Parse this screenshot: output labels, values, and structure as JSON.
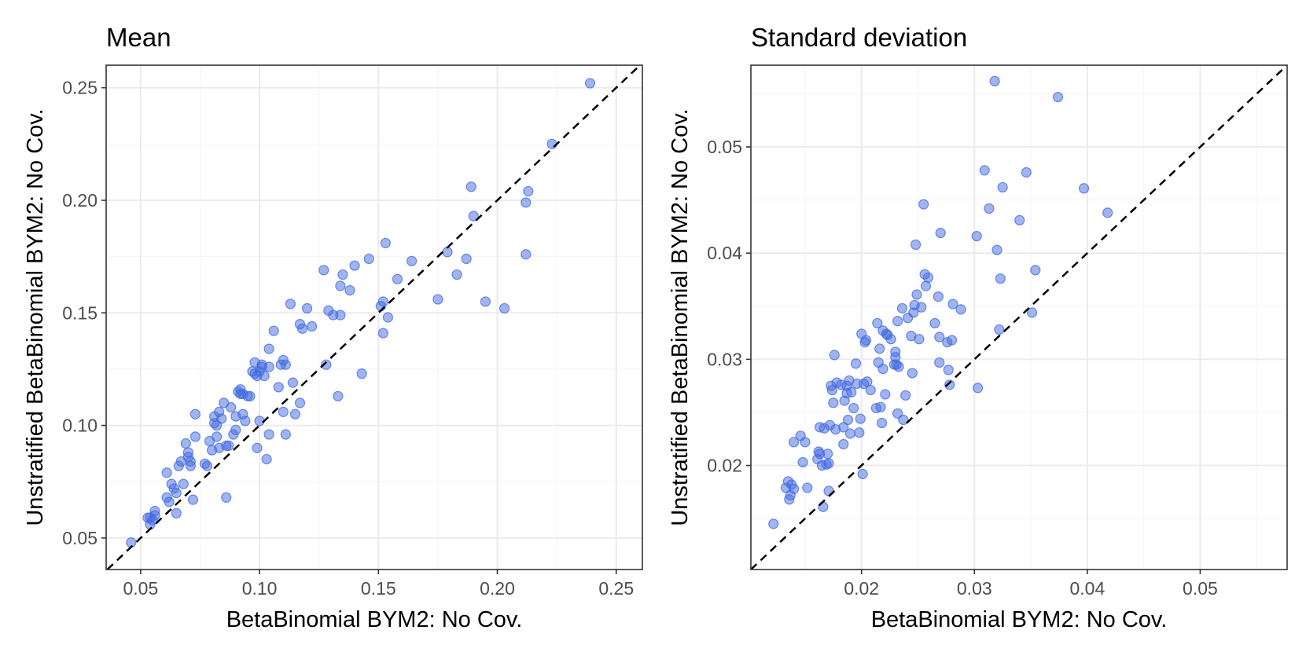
{
  "chart_data": [
    {
      "type": "scatter",
      "title": "Mean",
      "xlabel": "BetaBinomial BYM2: No Cov.",
      "ylabel": "Unstratified BetaBinomial BYM2: No Cov.",
      "xlim": [
        0.0355,
        0.261
      ],
      "ylim": [
        0.036,
        0.26
      ],
      "xticks": [
        0.05,
        0.1,
        0.15,
        0.2,
        0.25
      ],
      "yticks": [
        0.05,
        0.1,
        0.15,
        0.2,
        0.25
      ],
      "xtick_labels": [
        "0.05",
        "0.10",
        "0.15",
        "0.20",
        "0.25"
      ],
      "ytick_labels": [
        "0.05",
        "0.10",
        "0.15",
        "0.20",
        "0.25"
      ],
      "reference_line": "y = x",
      "points": [
        [
          0.046,
          0.048
        ],
        [
          0.053,
          0.059
        ],
        [
          0.054,
          0.056
        ],
        [
          0.055,
          0.058
        ],
        [
          0.056,
          0.06
        ],
        [
          0.056,
          0.062
        ],
        [
          0.054,
          0.059
        ],
        [
          0.061,
          0.068
        ],
        [
          0.062,
          0.066
        ],
        [
          0.061,
          0.079
        ],
        [
          0.063,
          0.074
        ],
        [
          0.064,
          0.072
        ],
        [
          0.065,
          0.07
        ],
        [
          0.065,
          0.061
        ],
        [
          0.066,
          0.082
        ],
        [
          0.067,
          0.084
        ],
        [
          0.068,
          0.074
        ],
        [
          0.069,
          0.092
        ],
        [
          0.07,
          0.088
        ],
        [
          0.07,
          0.086
        ],
        [
          0.071,
          0.082
        ],
        [
          0.071,
          0.084
        ],
        [
          0.072,
          0.067
        ],
        [
          0.073,
          0.095
        ],
        [
          0.073,
          0.105
        ],
        [
          0.077,
          0.083
        ],
        [
          0.078,
          0.082
        ],
        [
          0.079,
          0.093
        ],
        [
          0.08,
          0.089
        ],
        [
          0.081,
          0.101
        ],
        [
          0.081,
          0.104
        ],
        [
          0.082,
          0.095
        ],
        [
          0.082,
          0.1
        ],
        [
          0.083,
          0.09
        ],
        [
          0.083,
          0.106
        ],
        [
          0.084,
          0.103
        ],
        [
          0.085,
          0.11
        ],
        [
          0.086,
          0.068
        ],
        [
          0.086,
          0.091
        ],
        [
          0.087,
          0.091
        ],
        [
          0.088,
          0.108
        ],
        [
          0.089,
          0.096
        ],
        [
          0.09,
          0.098
        ],
        [
          0.09,
          0.104
        ],
        [
          0.091,
          0.115
        ],
        [
          0.092,
          0.116
        ],
        [
          0.092,
          0.114
        ],
        [
          0.093,
          0.105
        ],
        [
          0.093,
          0.114
        ],
        [
          0.094,
          0.102
        ],
        [
          0.095,
          0.113
        ],
        [
          0.096,
          0.113
        ],
        [
          0.097,
          0.124
        ],
        [
          0.098,
          0.128
        ],
        [
          0.098,
          0.123
        ],
        [
          0.099,
          0.122
        ],
        [
          0.099,
          0.09
        ],
        [
          0.1,
          0.102
        ],
        [
          0.1,
          0.124
        ],
        [
          0.101,
          0.126
        ],
        [
          0.101,
          0.127
        ],
        [
          0.102,
          0.122
        ],
        [
          0.103,
          0.085
        ],
        [
          0.104,
          0.096
        ],
        [
          0.104,
          0.126
        ],
        [
          0.104,
          0.134
        ],
        [
          0.106,
          0.142
        ],
        [
          0.108,
          0.117
        ],
        [
          0.109,
          0.127
        ],
        [
          0.11,
          0.106
        ],
        [
          0.11,
          0.129
        ],
        [
          0.111,
          0.096
        ],
        [
          0.111,
          0.127
        ],
        [
          0.113,
          0.154
        ],
        [
          0.114,
          0.119
        ],
        [
          0.115,
          0.105
        ],
        [
          0.117,
          0.145
        ],
        [
          0.117,
          0.11
        ],
        [
          0.118,
          0.143
        ],
        [
          0.12,
          0.152
        ],
        [
          0.122,
          0.144
        ],
        [
          0.127,
          0.169
        ],
        [
          0.128,
          0.127
        ],
        [
          0.129,
          0.151
        ],
        [
          0.131,
          0.149
        ],
        [
          0.133,
          0.113
        ],
        [
          0.134,
          0.149
        ],
        [
          0.134,
          0.162
        ],
        [
          0.135,
          0.167
        ],
        [
          0.138,
          0.16
        ],
        [
          0.14,
          0.171
        ],
        [
          0.143,
          0.123
        ],
        [
          0.146,
          0.174
        ],
        [
          0.151,
          0.153
        ],
        [
          0.152,
          0.141
        ],
        [
          0.152,
          0.155
        ],
        [
          0.153,
          0.181
        ],
        [
          0.154,
          0.148
        ],
        [
          0.158,
          0.165
        ],
        [
          0.164,
          0.173
        ],
        [
          0.175,
          0.156
        ],
        [
          0.179,
          0.177
        ],
        [
          0.183,
          0.167
        ],
        [
          0.187,
          0.174
        ],
        [
          0.189,
          0.206
        ],
        [
          0.19,
          0.193
        ],
        [
          0.195,
          0.155
        ],
        [
          0.203,
          0.152
        ],
        [
          0.212,
          0.199
        ],
        [
          0.212,
          0.176
        ],
        [
          0.213,
          0.204
        ],
        [
          0.223,
          0.225
        ],
        [
          0.239,
          0.252
        ]
      ]
    },
    {
      "type": "scatter",
      "title": "Standard deviation",
      "xlabel": "BetaBinomial BYM2: No Cov.",
      "ylabel": "Unstratified BetaBinomial BYM2: No Cov.",
      "xlim": [
        0.0102,
        0.0577
      ],
      "ylim": [
        0.0102,
        0.0577
      ],
      "xticks": [
        0.02,
        0.03,
        0.04,
        0.05
      ],
      "yticks": [
        0.02,
        0.03,
        0.04,
        0.05
      ],
      "xtick_labels": [
        "0.02",
        "0.03",
        "0.04",
        "0.05"
      ],
      "ytick_labels": [
        "0.02",
        "0.03",
        "0.04",
        "0.05"
      ],
      "reference_line": "y = x",
      "points": [
        [
          0.0122,
          0.0145
        ],
        [
          0.0133,
          0.0179
        ],
        [
          0.0135,
          0.0185
        ],
        [
          0.0136,
          0.0168
        ],
        [
          0.0137,
          0.0172
        ],
        [
          0.0138,
          0.0182
        ],
        [
          0.014,
          0.0178
        ],
        [
          0.014,
          0.0222
        ],
        [
          0.0146,
          0.0228
        ],
        [
          0.0148,
          0.0203
        ],
        [
          0.015,
          0.0222
        ],
        [
          0.0152,
          0.0179
        ],
        [
          0.0161,
          0.0206
        ],
        [
          0.0162,
          0.0213
        ],
        [
          0.0163,
          0.0236
        ],
        [
          0.0163,
          0.0211
        ],
        [
          0.0165,
          0.02
        ],
        [
          0.0166,
          0.0161
        ],
        [
          0.0167,
          0.0235
        ],
        [
          0.0169,
          0.0201
        ],
        [
          0.017,
          0.0211
        ],
        [
          0.0171,
          0.0202
        ],
        [
          0.0171,
          0.0176
        ],
        [
          0.0172,
          0.0238
        ],
        [
          0.0173,
          0.0275
        ],
        [
          0.0174,
          0.0271
        ],
        [
          0.0175,
          0.0259
        ],
        [
          0.0176,
          0.0304
        ],
        [
          0.0177,
          0.0234
        ],
        [
          0.0178,
          0.0278
        ],
        [
          0.0182,
          0.0276
        ],
        [
          0.0184,
          0.0236
        ],
        [
          0.0184,
          0.022
        ],
        [
          0.0185,
          0.0261
        ],
        [
          0.0187,
          0.0275
        ],
        [
          0.0187,
          0.0268
        ],
        [
          0.0188,
          0.0243
        ],
        [
          0.0189,
          0.028
        ],
        [
          0.019,
          0.023
        ],
        [
          0.0191,
          0.0269
        ],
        [
          0.0193,
          0.0254
        ],
        [
          0.0195,
          0.0296
        ],
        [
          0.0196,
          0.0277
        ],
        [
          0.0198,
          0.0231
        ],
        [
          0.0199,
          0.0244
        ],
        [
          0.02,
          0.0324
        ],
        [
          0.0201,
          0.0192
        ],
        [
          0.0202,
          0.0277
        ],
        [
          0.0203,
          0.0316
        ],
        [
          0.0204,
          0.0318
        ],
        [
          0.0205,
          0.0279
        ],
        [
          0.0208,
          0.0271
        ],
        [
          0.0213,
          0.0254
        ],
        [
          0.0214,
          0.0334
        ],
        [
          0.0215,
          0.0297
        ],
        [
          0.0216,
          0.031
        ],
        [
          0.0217,
          0.0255
        ],
        [
          0.0218,
          0.024
        ],
        [
          0.0219,
          0.0291
        ],
        [
          0.0219,
          0.0327
        ],
        [
          0.0221,
          0.0267
        ],
        [
          0.0222,
          0.0324
        ],
        [
          0.0223,
          0.0323
        ],
        [
          0.0226,
          0.0319
        ],
        [
          0.0229,
          0.0295
        ],
        [
          0.023,
          0.0307
        ],
        [
          0.023,
          0.0302
        ],
        [
          0.0231,
          0.0295
        ],
        [
          0.0232,
          0.0249
        ],
        [
          0.0232,
          0.0336
        ],
        [
          0.0233,
          0.0293
        ],
        [
          0.0236,
          0.0348
        ],
        [
          0.0237,
          0.0243
        ],
        [
          0.0239,
          0.0266
        ],
        [
          0.0241,
          0.0339
        ],
        [
          0.0244,
          0.0322
        ],
        [
          0.0245,
          0.0287
        ],
        [
          0.0246,
          0.0344
        ],
        [
          0.0247,
          0.0351
        ],
        [
          0.0248,
          0.0408
        ],
        [
          0.0249,
          0.0361
        ],
        [
          0.0251,
          0.0319
        ],
        [
          0.0253,
          0.0349
        ],
        [
          0.0255,
          0.0446
        ],
        [
          0.0256,
          0.038
        ],
        [
          0.0257,
          0.0369
        ],
        [
          0.0259,
          0.0377
        ],
        [
          0.0265,
          0.0334
        ],
        [
          0.0268,
          0.0359
        ],
        [
          0.0269,
          0.0321
        ],
        [
          0.0269,
          0.0297
        ],
        [
          0.027,
          0.0419
        ],
        [
          0.0276,
          0.0316
        ],
        [
          0.0277,
          0.029
        ],
        [
          0.0278,
          0.0276
        ],
        [
          0.028,
          0.0318
        ],
        [
          0.0281,
          0.0352
        ],
        [
          0.0288,
          0.0347
        ],
        [
          0.0302,
          0.0416
        ],
        [
          0.0303,
          0.0273
        ],
        [
          0.0309,
          0.0478
        ],
        [
          0.0313,
          0.0442
        ],
        [
          0.0318,
          0.0562
        ],
        [
          0.032,
          0.0403
        ],
        [
          0.0322,
          0.0328
        ],
        [
          0.0323,
          0.0376
        ],
        [
          0.0325,
          0.0462
        ],
        [
          0.034,
          0.0431
        ],
        [
          0.0346,
          0.0476
        ],
        [
          0.0351,
          0.0344
        ],
        [
          0.0354,
          0.0384
        ],
        [
          0.0374,
          0.0547
        ],
        [
          0.0397,
          0.0461
        ],
        [
          0.0418,
          0.0438
        ]
      ]
    }
  ]
}
